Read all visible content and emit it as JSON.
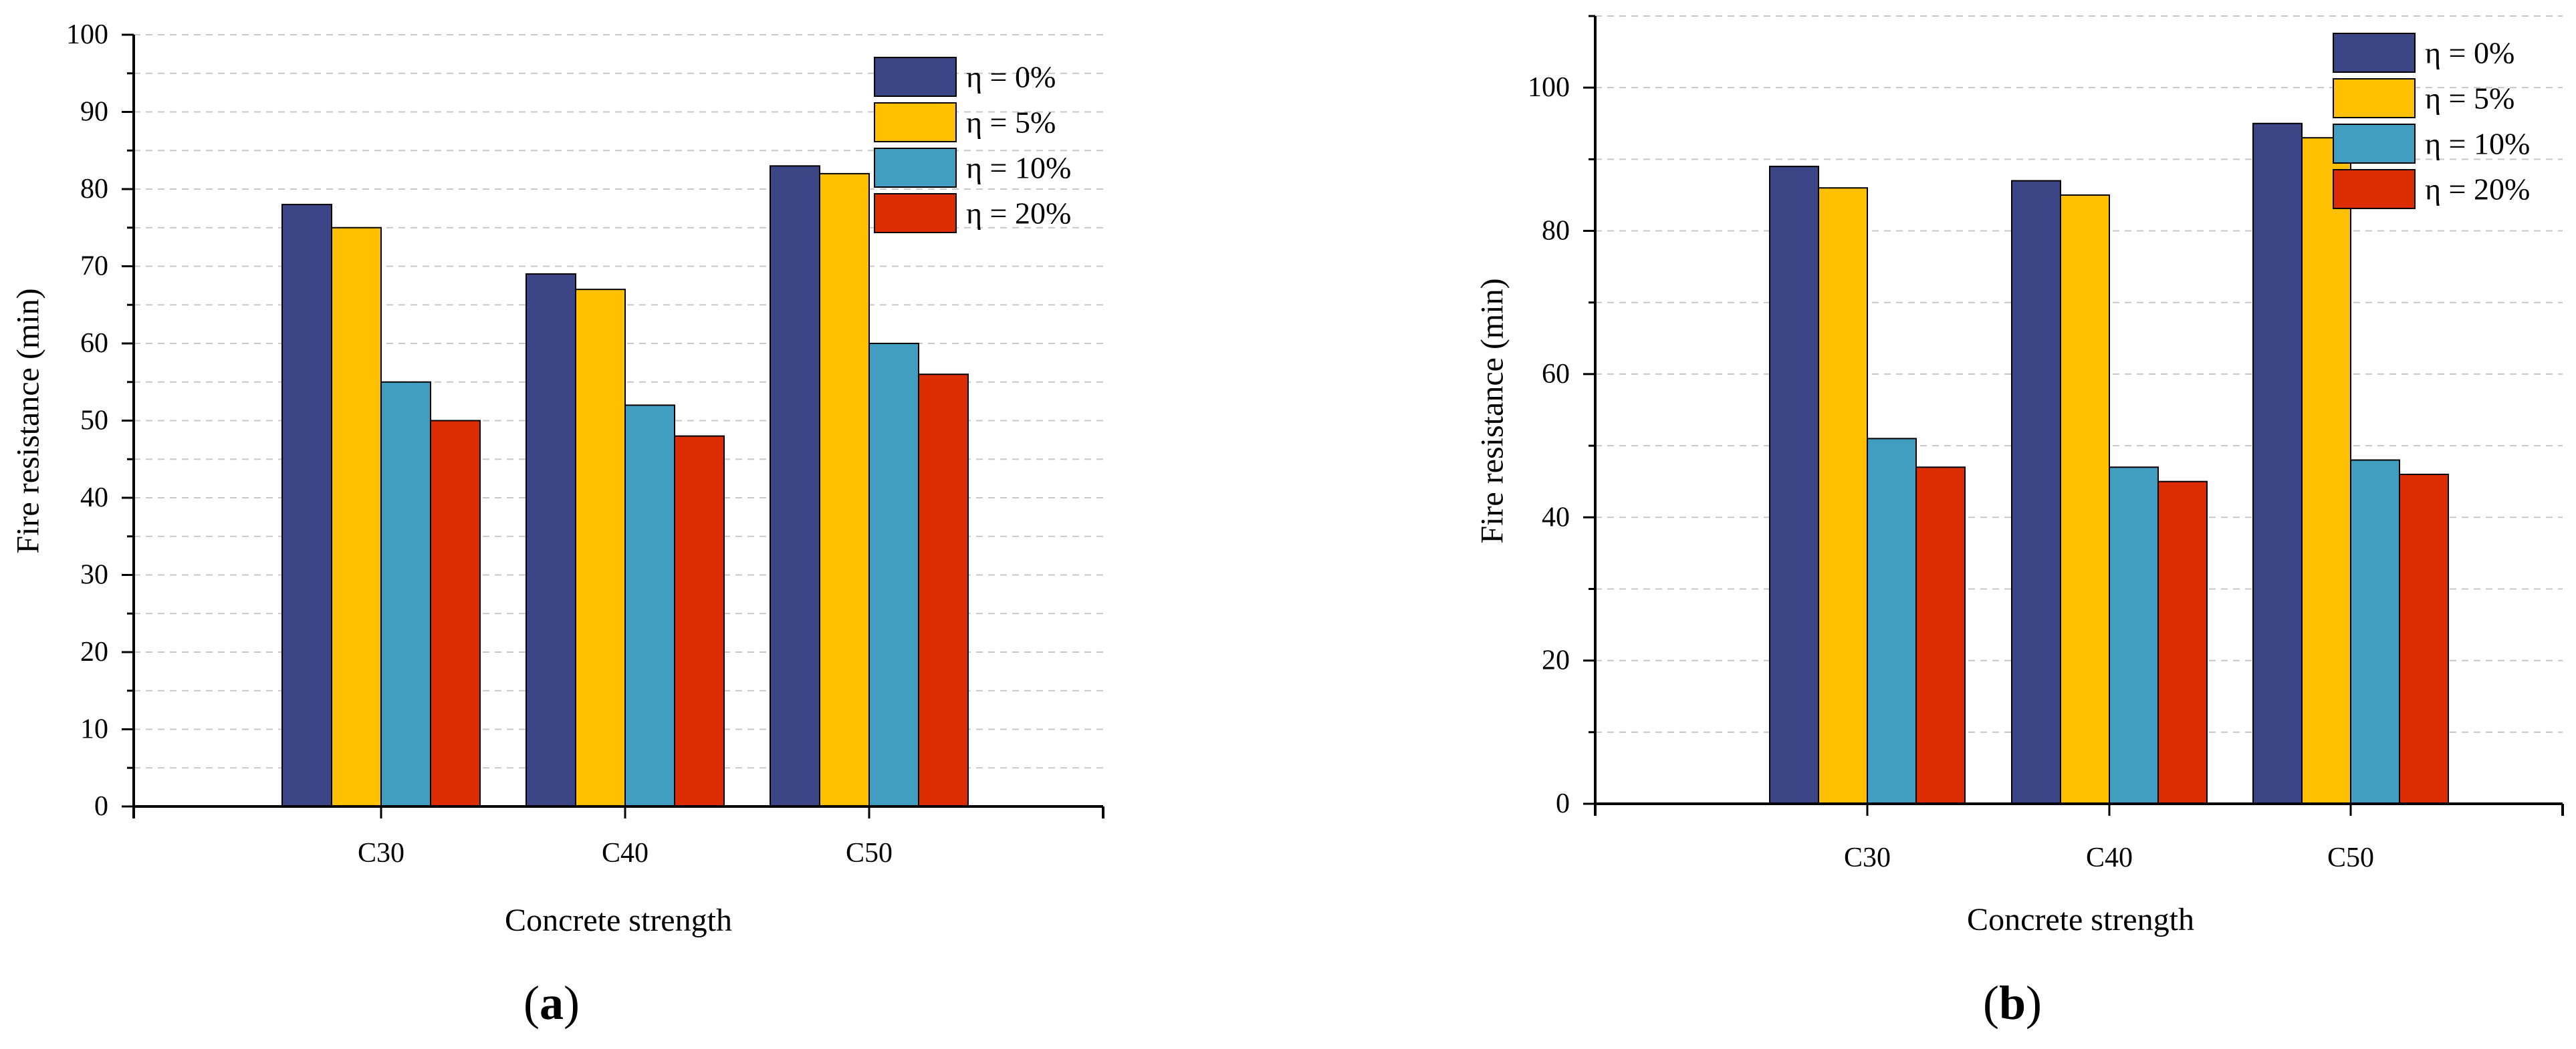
{
  "chart_data": [
    {
      "type": "bar",
      "panel": "(a)",
      "panel_letter": "a",
      "xlabel": "Concrete strength",
      "ylabel": "Fire resistance (min)",
      "categories": [
        "C30",
        "C40",
        "C50"
      ],
      "ylim": [
        0,
        100
      ],
      "yticks": [
        0,
        10,
        20,
        30,
        40,
        50,
        60,
        70,
        80,
        90,
        100
      ],
      "grid": true,
      "legend_position": "top-right",
      "series": [
        {
          "name": "η = 0%",
          "color": "#3c4586",
          "values": [
            78,
            69,
            83
          ]
        },
        {
          "name": "η = 5%",
          "color": "#fec000",
          "values": [
            75,
            67,
            82
          ]
        },
        {
          "name": "η = 10%",
          "color": "#429ec0",
          "values": [
            55,
            52,
            60
          ]
        },
        {
          "name": "η = 20%",
          "color": "#dc2d02",
          "values": [
            50,
            48,
            56
          ]
        }
      ]
    },
    {
      "type": "bar",
      "panel": "(b)",
      "panel_letter": "b",
      "xlabel": "Concrete strength",
      "ylabel": "Fire resistance (min)",
      "categories": [
        "C30",
        "C40",
        "C50"
      ],
      "ylim": [
        0,
        110
      ],
      "yticks": [
        0,
        20,
        40,
        60,
        80,
        100
      ],
      "grid": true,
      "legend_position": "top-right",
      "series": [
        {
          "name": "η = 0%",
          "color": "#3c4586",
          "values": [
            89,
            87,
            95
          ]
        },
        {
          "name": "η = 5%",
          "color": "#fec000",
          "values": [
            86,
            85,
            93
          ]
        },
        {
          "name": "η = 10%",
          "color": "#429ec0",
          "values": [
            51,
            47,
            48
          ]
        },
        {
          "name": "η = 20%",
          "color": "#dc2d02",
          "values": [
            47,
            45,
            46
          ]
        }
      ]
    }
  ]
}
